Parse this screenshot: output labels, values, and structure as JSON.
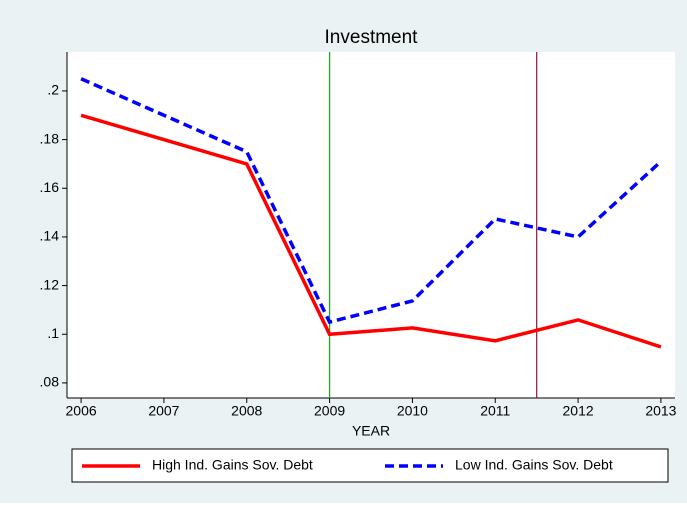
{
  "chart_data": {
    "type": "line",
    "title": "Investment",
    "x_label": "YEAR",
    "x": [
      2006,
      2008,
      2009,
      2010,
      2011,
      2012,
      2013
    ],
    "series": [
      {
        "name": "High Ind. Gains Sov. Debt",
        "color": "#ff0000",
        "dash": false,
        "values": [
          0.19,
          0.17,
          0.1,
          0.1026,
          0.0973,
          0.1059,
          0.0948
        ]
      },
      {
        "name": "Low Ind. Gains Sov. Debt",
        "color": "#0000ff",
        "dash": true,
        "values": [
          0.205,
          0.175,
          0.105,
          0.1137,
          0.1474,
          0.14,
          0.171
        ]
      }
    ],
    "xlim": [
      2005.83,
      2013.17
    ],
    "xticks": [
      2006,
      2007,
      2008,
      2009,
      2010,
      2011,
      2012,
      2013
    ],
    "ylim": [
      0.0738,
      0.216
    ],
    "yticks": [
      {
        "value": 0.08,
        "label": ".08"
      },
      {
        "value": 0.1,
        "label": ".1"
      },
      {
        "value": 0.12,
        "label": ".12"
      },
      {
        "value": 0.14,
        "label": ".14"
      },
      {
        "value": 0.16,
        "label": ".16"
      },
      {
        "value": 0.18,
        "label": ".18"
      },
      {
        "value": 0.2,
        "label": ".2"
      }
    ],
    "vlines": [
      {
        "value": 2009,
        "color": "#22aa22"
      },
      {
        "value": 2011.5,
        "color": "#a0204f"
      }
    ],
    "grid": false,
    "legend": "bottom"
  }
}
